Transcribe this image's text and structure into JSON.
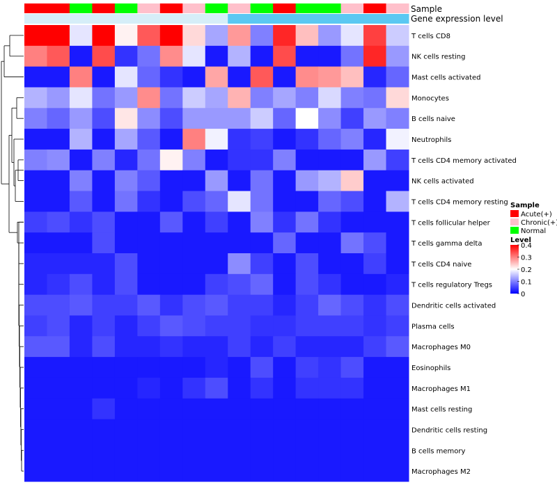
{
  "chart_data": {
    "type": "heatmap",
    "title": "",
    "annotation_titles": [
      "Sample",
      "Gene expression level"
    ],
    "rows": [
      "T cells CD8",
      "NK cells resting",
      "Mast cells activated",
      "Monocytes",
      "B cells naive",
      "Neutrophils",
      "T cells CD4 memory activated",
      "NK cells activated",
      "T cells CD4 memory resting",
      "T cells follicular helper",
      "T cells gamma delta",
      "T cells CD4 naive",
      "T cells regulatory  Tregs",
      "Dendritic cells activated",
      "Plasma cells",
      "Macrophages M0",
      "Eosinophils",
      "Macrophages M1",
      "Mast cells resting",
      "Dendritic cells resting",
      "B cells memory",
      "Macrophages M2"
    ],
    "sample_annotation": [
      "Acute(+)",
      "Acute(+)",
      "Normal",
      "Acute(+)",
      "Normal",
      "Chronic(+)",
      "Acute(+)",
      "Chronic(+)",
      "Normal",
      "Chronic(+)",
      "Normal",
      "Acute(+)",
      "Normal",
      "Normal",
      "Chronic(+)",
      "Acute(+)",
      "Chronic(+)"
    ],
    "gene_expression_level_annotation": [
      "low",
      "low",
      "low",
      "low",
      "low",
      "low",
      "low",
      "low",
      "low",
      "high",
      "high",
      "high",
      "high",
      "high",
      "high",
      "high",
      "high"
    ],
    "values": [
      [
        0.4,
        0.4,
        0.18,
        0.4,
        0.21,
        0.33,
        0.4,
        0.23,
        0.13,
        0.28,
        0.1,
        0.37,
        0.25,
        0.12,
        0.18,
        0.35,
        0.16
      ],
      [
        0.3,
        0.33,
        0.02,
        0.34,
        0.04,
        0.09,
        0.29,
        0.18,
        0.02,
        0.14,
        0.02,
        0.34,
        0.02,
        0.02,
        0.09,
        0.37,
        0.12
      ],
      [
        0.02,
        0.02,
        0.3,
        0.02,
        0.18,
        0.08,
        0.04,
        0.02,
        0.27,
        0.02,
        0.33,
        0.02,
        0.29,
        0.28,
        0.25,
        0.03,
        0.08
      ],
      [
        0.14,
        0.12,
        0.18,
        0.09,
        0.12,
        0.29,
        0.09,
        0.16,
        0.13,
        0.26,
        0.1,
        0.13,
        0.1,
        0.17,
        0.1,
        0.09,
        0.23
      ],
      [
        0.1,
        0.08,
        0.12,
        0.06,
        0.22,
        0.11,
        0.06,
        0.12,
        0.12,
        0.12,
        0.16,
        0.08,
        0.2,
        0.11,
        0.05,
        0.12,
        0.1
      ],
      [
        0.02,
        0.02,
        0.14,
        0.02,
        0.13,
        0.07,
        0.02,
        0.3,
        0.19,
        0.04,
        0.05,
        0.02,
        0.04,
        0.08,
        0.1,
        0.03,
        0.19
      ],
      [
        0.1,
        0.11,
        0.02,
        0.1,
        0.03,
        0.09,
        0.21,
        0.1,
        0.02,
        0.04,
        0.04,
        0.1,
        0.02,
        0.02,
        0.02,
        0.12,
        0.05
      ],
      [
        0.02,
        0.02,
        0.1,
        0.02,
        0.1,
        0.07,
        0.02,
        0.02,
        0.12,
        0.02,
        0.09,
        0.02,
        0.12,
        0.14,
        0.24,
        0.02,
        0.02
      ],
      [
        0.02,
        0.02,
        0.07,
        0.02,
        0.09,
        0.04,
        0.02,
        0.06,
        0.08,
        0.18,
        0.09,
        0.02,
        0.02,
        0.08,
        0.06,
        0.02,
        0.14
      ],
      [
        0.05,
        0.06,
        0.04,
        0.06,
        0.02,
        0.02,
        0.07,
        0.02,
        0.05,
        0.02,
        0.1,
        0.04,
        0.09,
        0.04,
        0.02,
        0.02,
        0.02
      ],
      [
        0.02,
        0.02,
        0.02,
        0.06,
        0.02,
        0.02,
        0.02,
        0.02,
        0.02,
        0.02,
        0.02,
        0.08,
        0.02,
        0.02,
        0.09,
        0.06,
        0.02
      ],
      [
        0.03,
        0.03,
        0.03,
        0.03,
        0.06,
        0.02,
        0.02,
        0.02,
        0.02,
        0.11,
        0.05,
        0.02,
        0.06,
        0.02,
        0.02,
        0.05,
        0.02
      ],
      [
        0.03,
        0.04,
        0.06,
        0.03,
        0.06,
        0.02,
        0.02,
        0.02,
        0.05,
        0.06,
        0.08,
        0.02,
        0.06,
        0.04,
        0.02,
        0.02,
        0.03
      ],
      [
        0.06,
        0.06,
        0.07,
        0.05,
        0.05,
        0.07,
        0.04,
        0.06,
        0.07,
        0.05,
        0.05,
        0.03,
        0.05,
        0.08,
        0.06,
        0.04,
        0.06
      ],
      [
        0.05,
        0.06,
        0.03,
        0.05,
        0.03,
        0.05,
        0.07,
        0.06,
        0.05,
        0.05,
        0.04,
        0.04,
        0.05,
        0.05,
        0.05,
        0.04,
        0.05
      ],
      [
        0.07,
        0.07,
        0.03,
        0.06,
        0.03,
        0.03,
        0.04,
        0.03,
        0.03,
        0.05,
        0.03,
        0.05,
        0.03,
        0.03,
        0.03,
        0.05,
        0.07
      ],
      [
        0.02,
        0.02,
        0.02,
        0.02,
        0.02,
        0.02,
        0.02,
        0.02,
        0.03,
        0.02,
        0.06,
        0.02,
        0.05,
        0.04,
        0.06,
        0.02,
        0.02
      ],
      [
        0.02,
        0.02,
        0.02,
        0.02,
        0.02,
        0.03,
        0.02,
        0.04,
        0.06,
        0.02,
        0.04,
        0.02,
        0.04,
        0.04,
        0.04,
        0.02,
        0.02
      ],
      [
        0.02,
        0.02,
        0.02,
        0.04,
        0.02,
        0.02,
        0.02,
        0.02,
        0.02,
        0.02,
        0.02,
        0.02,
        0.02,
        0.02,
        0.02,
        0.02,
        0.02
      ],
      [
        0.02,
        0.02,
        0.02,
        0.02,
        0.02,
        0.02,
        0.02,
        0.02,
        0.02,
        0.02,
        0.02,
        0.02,
        0.02,
        0.02,
        0.02,
        0.02,
        0.02
      ],
      [
        0.02,
        0.02,
        0.02,
        0.02,
        0.02,
        0.02,
        0.02,
        0.02,
        0.02,
        0.02,
        0.02,
        0.02,
        0.02,
        0.02,
        0.02,
        0.02,
        0.02
      ],
      [
        0.02,
        0.02,
        0.02,
        0.02,
        0.02,
        0.02,
        0.02,
        0.02,
        0.02,
        0.02,
        0.02,
        0.02,
        0.02,
        0.02,
        0.02,
        0.02,
        0.02
      ]
    ],
    "color_scale": {
      "title": "Level",
      "stops": [
        0,
        0.2,
        0.4
      ],
      "colors": [
        "#0000ff",
        "#ffffff",
        "#ff0000"
      ],
      "ticks": [
        0,
        0.1,
        0.2,
        0.3,
        0.4
      ],
      "tick_labels": [
        "0",
        "0.1",
        "0.2",
        "0.3",
        "0.4"
      ]
    },
    "legend": {
      "sample_title": "Sample",
      "sample_entries": [
        {
          "label": "Acute(+)",
          "color": "#ff0000"
        },
        {
          "label": "Chronic(+)",
          "color": "#ffc0cb"
        },
        {
          "label": "Normal",
          "color": "#00ff00"
        }
      ],
      "level_colors": {
        "low": "#d6eef8",
        "high": "#5bc8f2"
      }
    }
  }
}
